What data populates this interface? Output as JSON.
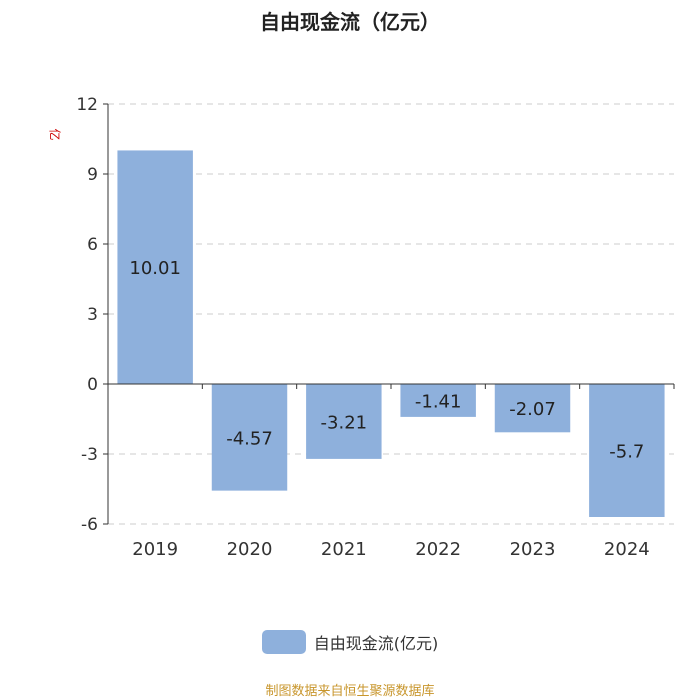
{
  "chart_data": {
    "type": "bar",
    "title": "自由现金流（亿元）",
    "y_unit": "亿",
    "categories": [
      "2019",
      "2020",
      "2021",
      "2022",
      "2023",
      "2024"
    ],
    "series": [
      {
        "name": "自由现金流(亿元)",
        "values": [
          10.01,
          -4.57,
          -3.21,
          -1.41,
          -2.07,
          -5.7
        ],
        "labels": [
          "10.01",
          "-4.57",
          "-3.21",
          "-1.41",
          "-2.07",
          "-5.7"
        ],
        "color": "#8eb0dc"
      }
    ],
    "y_ticks": [
      12,
      9,
      6,
      3,
      0,
      -3,
      -6
    ],
    "ylim": [
      -6,
      12
    ],
    "grid": true,
    "legend_position": "bottom"
  },
  "source_note": "制图数据来自恒生聚源数据库"
}
